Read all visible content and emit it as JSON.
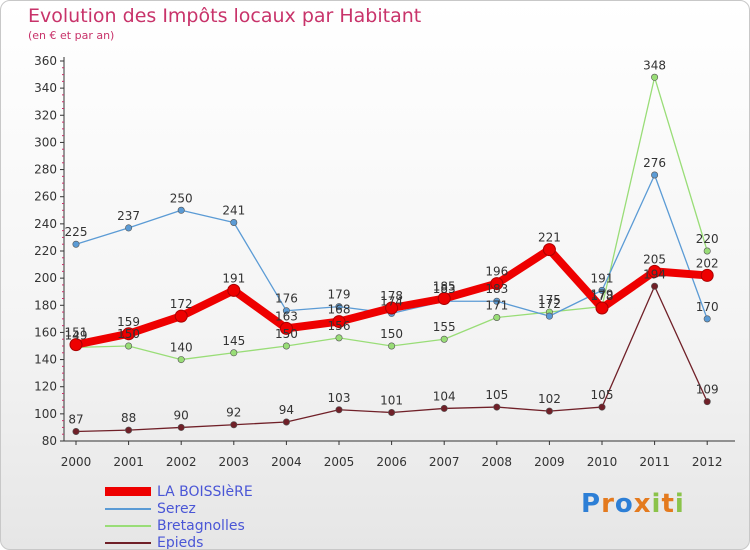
{
  "chart_data": {
    "type": "line",
    "title": "Evolution des Impôts locaux par Habitant",
    "subtitle": "(en € et par an)",
    "xlabel": "",
    "ylabel": "",
    "ylim": [
      80,
      360
    ],
    "yticks": [
      80,
      100,
      120,
      140,
      160,
      180,
      200,
      220,
      240,
      260,
      280,
      300,
      320,
      340,
      360
    ],
    "x": [
      "2000",
      "2001",
      "2002",
      "2003",
      "2004",
      "2005",
      "2006",
      "2007",
      "2008",
      "2009",
      "2010",
      "2011",
      "2012"
    ],
    "series": [
      {
        "name": "LA BOISSIèRE",
        "color": "#ee0000",
        "values": [
          151,
          159,
          172,
          191,
          163,
          168,
          178,
          185,
          196,
          221,
          178,
          205,
          202
        ]
      },
      {
        "name": "Serez",
        "color": "#5b9bd5",
        "values": [
          225,
          237,
          250,
          241,
          176,
          179,
          174,
          183,
          183,
          172,
          191,
          276,
          170
        ]
      },
      {
        "name": "Bretagnolles",
        "color": "#99dd77",
        "values": [
          149,
          150,
          140,
          145,
          150,
          156,
          150,
          155,
          171,
          175,
          179,
          348,
          220
        ]
      },
      {
        "name": "Epieds",
        "color": "#702028",
        "values": [
          87,
          88,
          90,
          92,
          94,
          103,
          101,
          104,
          105,
          102,
          105,
          194,
          109
        ]
      }
    ],
    "legend_position": "bottom-left",
    "grid": false
  },
  "logo": {
    "letters": [
      "P",
      "r",
      "o",
      "x",
      "i",
      "t",
      "i"
    ]
  }
}
